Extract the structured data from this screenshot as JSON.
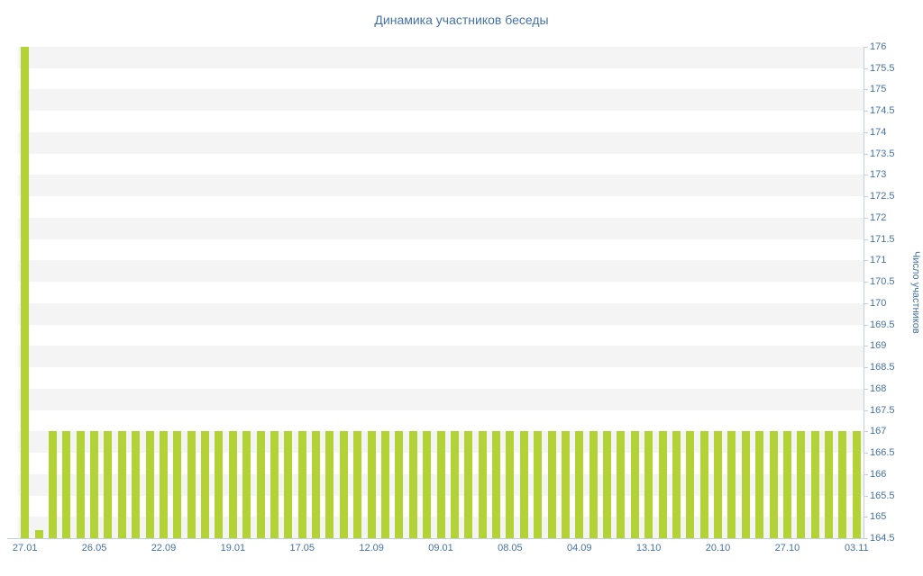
{
  "chart_data": {
    "type": "bar",
    "title": "Динамика участников беседы",
    "xlabel": "",
    "ylabel": "Число участников",
    "ylim": [
      164.5,
      176
    ],
    "ytick_step": 0.5,
    "grid": "alternating-horizontal-bands",
    "legend": "none",
    "y_axis_position": "right",
    "x_tick_labels": [
      "27.01",
      "26.05",
      "22.09",
      "19.01",
      "17.05",
      "12.09",
      "09.01",
      "08.05",
      "04.09",
      "13.10",
      "20.10",
      "27.10",
      "03.11"
    ],
    "label_every_n_bars": 5,
    "bar_color": "#b2d235",
    "label_color": "#4572a7",
    "band_color": "#f4f4f4",
    "axis_color": "#c0d0e0",
    "values": [
      176,
      164.7,
      167,
      167,
      167,
      167,
      167,
      167,
      167,
      167,
      167,
      167,
      167,
      167,
      167,
      167,
      167,
      167,
      167,
      167,
      167,
      167,
      167,
      167,
      167,
      167,
      167,
      167,
      167,
      167,
      167,
      167,
      167,
      167,
      167,
      167,
      167,
      167,
      167,
      167,
      167,
      167,
      167,
      167,
      167,
      167,
      167,
      167,
      167,
      167,
      167,
      167,
      167,
      167,
      167,
      167,
      167,
      167,
      167,
      167,
      167
    ]
  }
}
